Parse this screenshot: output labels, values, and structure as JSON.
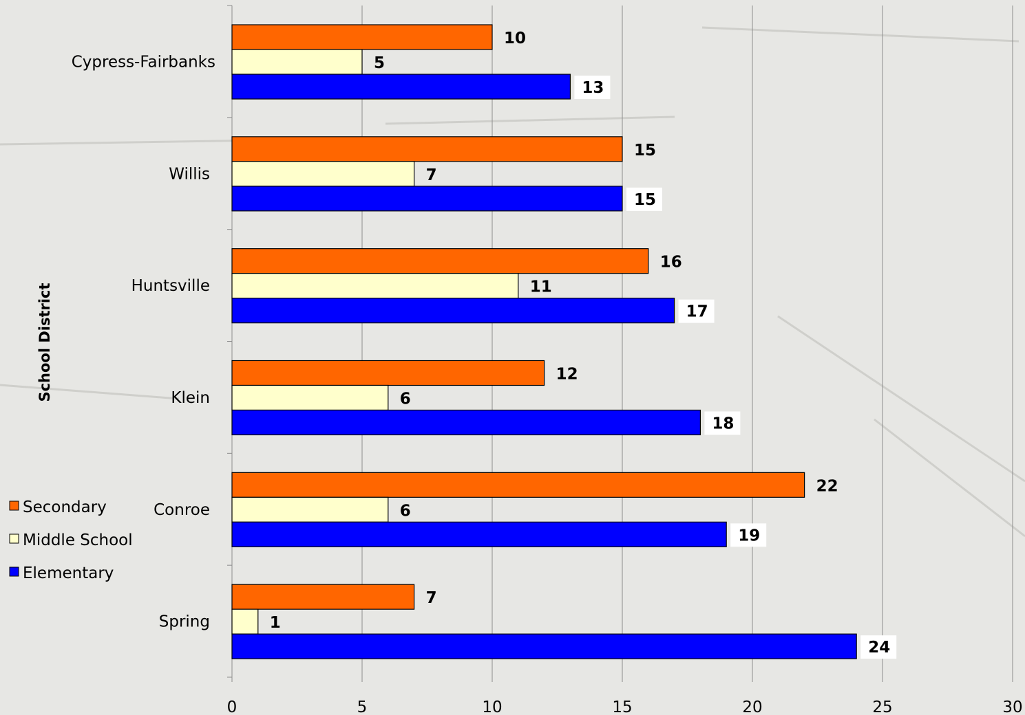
{
  "colors": {
    "Secondary": "#ff6600",
    "Middle School": "#ffffcc",
    "Elementary": "#0000ff"
  },
  "chart_data": {
    "type": "bar",
    "orientation": "horizontal",
    "categories": [
      "Cypress-Fairbanks",
      "Willis",
      "Huntsville",
      "Klein",
      "Conroe",
      "Spring"
    ],
    "series": [
      {
        "name": "Secondary",
        "values": [
          10,
          15,
          16,
          12,
          22,
          7
        ]
      },
      {
        "name": "Middle School",
        "values": [
          5,
          7,
          11,
          6,
          6,
          1
        ]
      },
      {
        "name": "Elementary",
        "values": [
          13,
          15,
          17,
          18,
          19,
          24
        ]
      }
    ],
    "title": "",
    "xlabel": "",
    "ylabel": "School District",
    "xlim": [
      0,
      30
    ],
    "xticks": [
      0,
      5,
      10,
      15,
      20,
      25,
      30
    ],
    "grid": true,
    "legend_position": "left"
  }
}
